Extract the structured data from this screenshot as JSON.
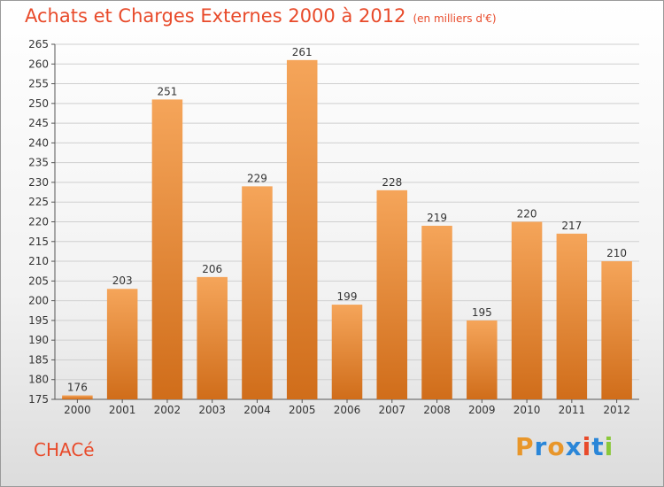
{
  "title": "Achats et Charges Externes 2000 à 2012",
  "title_unit": "(en milliers d'€)",
  "commune": "CHACé",
  "logo": {
    "text": "Proxiti",
    "letter_colors": [
      "#e8962a",
      "#2a86d8",
      "#e8962a",
      "#2a86d8",
      "#e84a2a",
      "#2a86d8",
      "#8ac83a"
    ]
  },
  "colors": {
    "title": "#e84a2a",
    "bar_top": "#f5a55a",
    "bar_bottom": "#d06d1a",
    "axis": "#555555",
    "grid": "#cfcfcf"
  },
  "chart_data": {
    "type": "bar",
    "categories": [
      "2000",
      "2001",
      "2002",
      "2003",
      "2004",
      "2005",
      "2006",
      "2007",
      "2008",
      "2009",
      "2010",
      "2011",
      "2012"
    ],
    "values": [
      176,
      203,
      251,
      206,
      229,
      261,
      199,
      228,
      219,
      195,
      220,
      217,
      210
    ],
    "ylim": [
      175,
      265
    ],
    "yticks": [
      175,
      180,
      185,
      190,
      195,
      200,
      205,
      210,
      215,
      220,
      225,
      230,
      235,
      240,
      245,
      250,
      255,
      260,
      265
    ],
    "grid": true,
    "legend": "none"
  }
}
